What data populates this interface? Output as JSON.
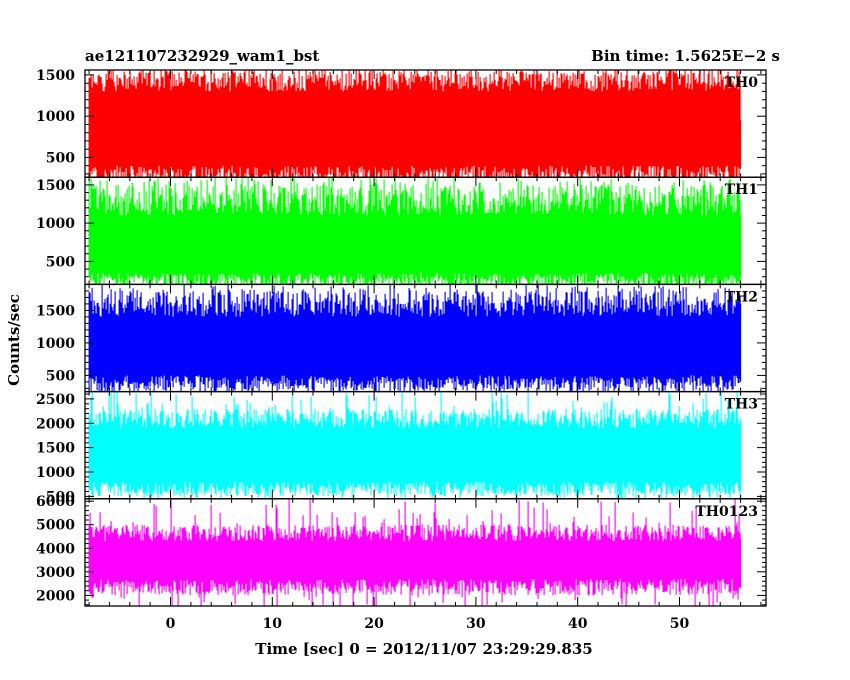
{
  "chart_data": {
    "type": "line",
    "title_left": "ae121107232929_wam1_bst",
    "title_right": "Bin time: 1.5625E−2 s",
    "xlabel": "Time [sec] 0 = 2012/11/07 23:29:29.835",
    "ylabel": "Counts/sec",
    "xlim": [
      -8.4,
      58.5
    ],
    "x_ticks": [
      0,
      10,
      20,
      30,
      40,
      50
    ],
    "x_data_range": [
      -8,
      56
    ],
    "grid": false,
    "panels": [
      {
        "name": "TH0",
        "color": "#ff0000",
        "ylim": [
          260,
          1560
        ],
        "y_ticks": [
          500,
          1000,
          1500
        ],
        "band_low": [
          150,
          400
        ],
        "band_high": [
          1300,
          1550
        ],
        "spike_min": 20,
        "spike_max": 1600,
        "edge_low": 360,
        "edge_high": 950
      },
      {
        "name": "TH1",
        "color": "#00ff00",
        "ylim": [
          200,
          1600
        ],
        "y_ticks": [
          500,
          1000,
          1500
        ],
        "band_low": [
          150,
          350
        ],
        "band_high": [
          1100,
          1500
        ],
        "spike_min": 50,
        "spike_max": 1600,
        "edge_low": 300,
        "edge_high": 1100
      },
      {
        "name": "TH2",
        "color": "#0000ff",
        "ylim": [
          250,
          1900
        ],
        "y_ticks": [
          500,
          1000,
          1500
        ],
        "band_low": [
          250,
          500
        ],
        "band_high": [
          1400,
          1800
        ],
        "spike_min": 100,
        "spike_max": 1900,
        "edge_low": 400,
        "edge_high": 1600
      },
      {
        "name": "TH3",
        "color": "#00ffff",
        "ylim": [
          450,
          2650
        ],
        "y_ticks": [
          500,
          1000,
          1500,
          2000,
          2500
        ],
        "band_low": [
          500,
          800
        ],
        "band_high": [
          1900,
          2300
        ],
        "spike_min": 350,
        "spike_max": 2700,
        "edge_low": 600,
        "edge_high": 2100
      },
      {
        "name": "TH0123",
        "color": "#ff00ff",
        "ylim": [
          1550,
          6100
        ],
        "y_ticks": [
          2000,
          3000,
          4000,
          5000,
          6000
        ],
        "band_low": [
          2000,
          2700
        ],
        "band_high": [
          4300,
          5000
        ],
        "spike_min": 1300,
        "spike_max": 6200,
        "edge_low": 2300,
        "edge_high": 4400
      }
    ]
  }
}
